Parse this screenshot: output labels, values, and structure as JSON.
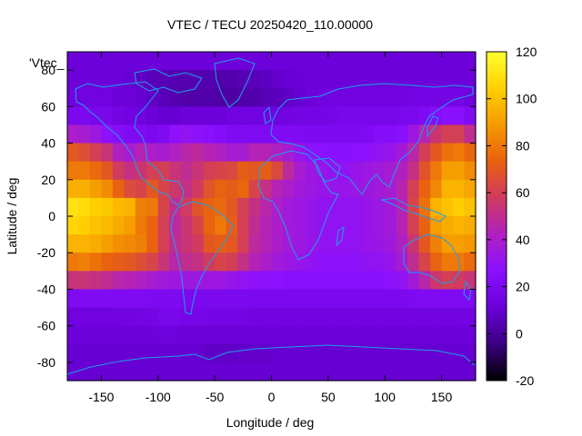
{
  "chart_data": {
    "type": "heatmap",
    "title": "VTEC / TECU 20250420_110.00000",
    "xlabel": "Longitude / deg",
    "ylabel": "Latitude / deg",
    "key_label": "'Vtec_",
    "xlim": [
      -180,
      180
    ],
    "ylim": [
      -90,
      90
    ],
    "xticks": [
      -150,
      -100,
      -50,
      0,
      50,
      100,
      150
    ],
    "yticks": [
      -80,
      -60,
      -40,
      -20,
      0,
      20,
      40,
      60,
      80
    ],
    "colorbar": {
      "range": [
        -20,
        120
      ],
      "ticks": [
        -20,
        0,
        20,
        40,
        60,
        80,
        100,
        120
      ],
      "palette": [
        "#000000",
        "#3a0080",
        "#6a00d8",
        "#8a10ff",
        "#b020c0",
        "#d03a60",
        "#e86010",
        "#f59a00",
        "#ffd000",
        "#ffff30"
      ]
    },
    "grid": {
      "lons": [
        -175,
        -165,
        -155,
        -145,
        -135,
        -125,
        -115,
        -105,
        -95,
        -85,
        -75,
        -65,
        -55,
        -45,
        -35,
        -25,
        -15,
        -5,
        5,
        15,
        25,
        35,
        45,
        55,
        65,
        75,
        85,
        95,
        105,
        115,
        125,
        135,
        145,
        155,
        165,
        175
      ],
      "lats": [
        85,
        75,
        65,
        55,
        45,
        35,
        25,
        15,
        5,
        -5,
        -15,
        -25,
        -35,
        -45,
        -55,
        -65,
        -75,
        -85
      ],
      "values": [
        [
          12,
          12,
          12,
          12,
          12,
          12,
          12,
          12,
          12,
          12,
          12,
          12,
          12,
          12,
          12,
          12,
          12,
          12,
          12,
          12,
          12,
          12,
          12,
          12,
          12,
          12,
          12,
          12,
          12,
          12,
          12,
          12,
          12,
          12,
          12,
          12
        ],
        [
          12,
          12,
          12,
          12,
          12,
          10,
          8,
          6,
          5,
          4,
          4,
          4,
          4,
          3,
          4,
          5,
          6,
          7,
          9,
          10,
          11,
          12,
          12,
          12,
          12,
          12,
          12,
          12,
          12,
          12,
          12,
          12,
          12,
          12,
          12,
          12
        ],
        [
          14,
          14,
          14,
          14,
          12,
          12,
          10,
          8,
          6,
          4,
          3,
          3,
          3,
          2,
          2,
          3,
          3,
          5,
          6,
          8,
          10,
          12,
          14,
          14,
          14,
          14,
          14,
          14,
          14,
          15,
          16,
          16,
          16,
          16,
          16,
          14
        ],
        [
          20,
          20,
          18,
          18,
          16,
          14,
          14,
          12,
          10,
          10,
          12,
          12,
          12,
          12,
          14,
          14,
          14,
          14,
          14,
          15,
          16,
          16,
          16,
          17,
          18,
          18,
          18,
          18,
          18,
          19,
          20,
          22,
          24,
          26,
          26,
          22
        ],
        [
          40,
          38,
          34,
          28,
          24,
          22,
          22,
          20,
          22,
          28,
          30,
          28,
          26,
          24,
          22,
          22,
          22,
          22,
          22,
          22,
          22,
          21,
          21,
          21,
          21,
          21,
          22,
          24,
          24,
          26,
          34,
          45,
          55,
          60,
          60,
          50
        ],
        [
          70,
          66,
          60,
          54,
          42,
          38,
          44,
          40,
          38,
          42,
          46,
          48,
          44,
          42,
          38,
          38,
          44,
          44,
          42,
          38,
          32,
          28,
          27,
          26,
          26,
          27,
          28,
          30,
          32,
          36,
          46,
          60,
          70,
          78,
          80,
          75
        ],
        [
          80,
          80,
          76,
          70,
          58,
          52,
          55,
          60,
          60,
          54,
          50,
          54,
          60,
          62,
          64,
          72,
          70,
          72,
          64,
          48,
          38,
          34,
          32,
          30,
          30,
          32,
          34,
          36,
          38,
          42,
          52,
          68,
          80,
          90,
          90,
          85
        ],
        [
          95,
          95,
          90,
          85,
          74,
          65,
          62,
          70,
          62,
          56,
          52,
          58,
          68,
          74,
          72,
          75,
          62,
          52,
          44,
          40,
          36,
          34,
          32,
          32,
          32,
          33,
          34,
          36,
          38,
          45,
          60,
          74,
          84,
          96,
          96,
          92
        ],
        [
          110,
          108,
          104,
          102,
          98,
          96,
          82,
          80,
          62,
          50,
          58,
          68,
          74,
          76,
          70,
          60,
          52,
          46,
          40,
          36,
          34,
          32,
          30,
          30,
          30,
          30,
          32,
          34,
          36,
          44,
          62,
          78,
          96,
          100,
          104,
          100
        ],
        [
          106,
          104,
          100,
          98,
          94,
          90,
          80,
          74,
          60,
          48,
          55,
          62,
          74,
          80,
          72,
          60,
          50,
          44,
          40,
          36,
          34,
          32,
          30,
          30,
          30,
          30,
          32,
          34,
          36,
          44,
          60,
          74,
          90,
          94,
          96,
          94
        ],
        [
          96,
          96,
          94,
          90,
          86,
          84,
          82,
          74,
          60,
          50,
          54,
          58,
          70,
          72,
          70,
          60,
          48,
          44,
          40,
          36,
          34,
          32,
          30,
          30,
          30,
          30,
          32,
          33,
          35,
          42,
          55,
          70,
          82,
          90,
          90,
          88
        ],
        [
          80,
          82,
          78,
          74,
          72,
          70,
          66,
          62,
          54,
          46,
          50,
          52,
          58,
          62,
          60,
          52,
          44,
          40,
          36,
          34,
          32,
          30,
          28,
          28,
          28,
          28,
          30,
          30,
          32,
          38,
          50,
          62,
          74,
          80,
          80,
          76
        ],
        [
          54,
          54,
          52,
          50,
          46,
          44,
          42,
          38,
          36,
          34,
          34,
          34,
          34,
          34,
          32,
          30,
          28,
          28,
          28,
          26,
          26,
          26,
          26,
          26,
          26,
          26,
          26,
          26,
          28,
          30,
          36,
          46,
          56,
          60,
          58,
          54
        ],
        [
          22,
          22,
          22,
          22,
          22,
          22,
          22,
          21,
          21,
          21,
          20,
          20,
          20,
          20,
          20,
          20,
          20,
          20,
          20,
          20,
          20,
          20,
          20,
          20,
          20,
          20,
          20,
          20,
          20,
          20,
          21,
          22,
          22,
          22,
          22,
          22
        ],
        [
          14,
          14,
          14,
          14,
          15,
          15,
          16,
          16,
          18,
          18,
          17,
          17,
          16,
          16,
          16,
          16,
          15,
          15,
          15,
          15,
          15,
          15,
          15,
          15,
          15,
          15,
          15,
          15,
          15,
          15,
          15,
          15,
          15,
          15,
          15,
          15
        ],
        [
          12,
          12,
          12,
          12,
          12,
          12,
          12,
          13,
          13,
          13,
          12,
          12,
          12,
          12,
          12,
          12,
          12,
          12,
          12,
          12,
          12,
          12,
          12,
          12,
          12,
          12,
          12,
          12,
          12,
          12,
          12,
          12,
          12,
          12,
          12,
          12
        ],
        [
          10,
          10,
          10,
          10,
          10,
          10,
          10,
          10,
          10,
          10,
          10,
          10,
          8,
          8,
          8,
          9,
          9,
          9,
          10,
          10,
          10,
          10,
          10,
          10,
          10,
          10,
          10,
          10,
          10,
          10,
          10,
          10,
          10,
          10,
          10,
          10
        ],
        [
          10,
          10,
          10,
          10,
          10,
          10,
          10,
          10,
          10,
          10,
          10,
          10,
          10,
          10,
          10,
          10,
          10,
          10,
          10,
          10,
          10,
          10,
          10,
          10,
          10,
          10,
          10,
          10,
          10,
          10,
          10,
          10,
          10,
          10,
          10,
          10
        ]
      ]
    }
  }
}
